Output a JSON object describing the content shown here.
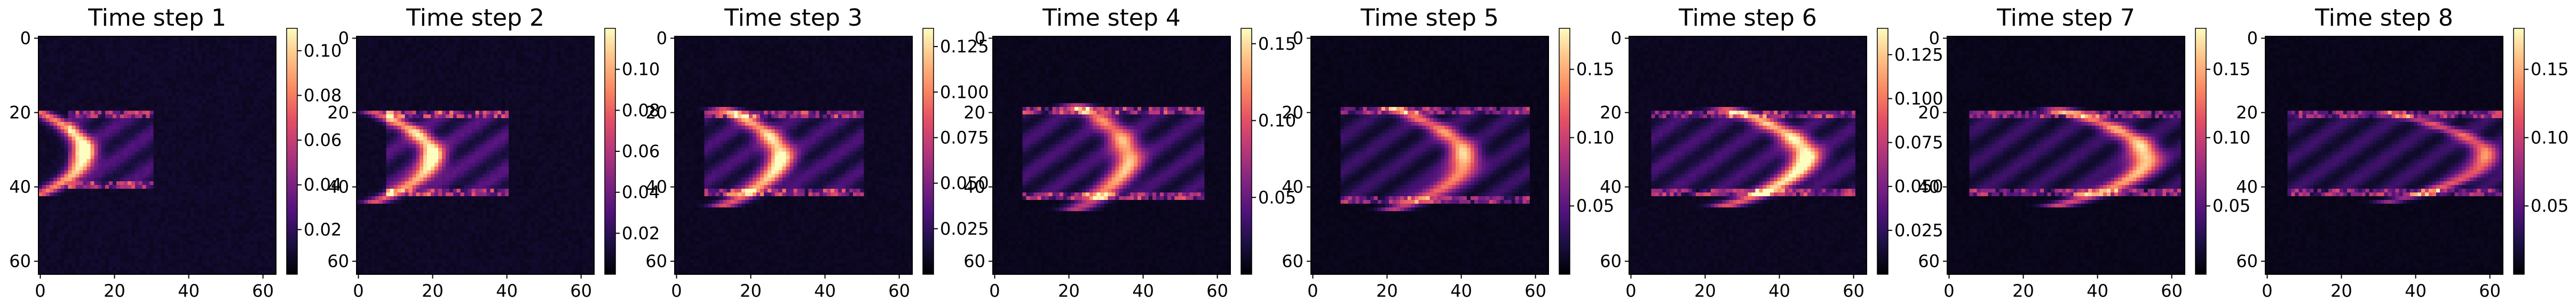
{
  "chart_data": [
    {
      "type": "heatmap",
      "title": "Time step 1",
      "grid_size": 64,
      "x_ticks": [
        "0",
        "20",
        "40",
        "60"
      ],
      "y_ticks": [
        "0",
        "20",
        "40",
        "60"
      ],
      "colorbar_ticks": [
        {
          "value": 0.02,
          "label": "0.02"
        },
        {
          "value": 0.04,
          "label": "0.04"
        },
        {
          "value": 0.06,
          "label": "0.06"
        },
        {
          "value": 0.08,
          "label": "0.08"
        },
        {
          "value": 0.1,
          "label": "0.10"
        }
      ],
      "value_range": [
        0.0,
        0.11
      ],
      "colormap": "magma",
      "front": {
        "x": 12,
        "opening": 10,
        "half_height": 10,
        "width": 2.2,
        "peak": 0.11
      },
      "cloud": {
        "x_start": 8,
        "x_end": 30,
        "y_top": 20,
        "y_bottom": 40,
        "level": 0.02
      }
    },
    {
      "type": "heatmap",
      "title": "Time step 2",
      "grid_size": 64,
      "x_ticks": [
        "0",
        "20",
        "40",
        "60"
      ],
      "y_ticks": [
        "0",
        "20",
        "40",
        "60"
      ],
      "colorbar_ticks": [
        {
          "value": 0.02,
          "label": "0.02"
        },
        {
          "value": 0.04,
          "label": "0.04"
        },
        {
          "value": 0.06,
          "label": "0.06"
        },
        {
          "value": 0.08,
          "label": "0.08"
        },
        {
          "value": 0.1,
          "label": "0.10"
        }
      ],
      "value_range": [
        0.0,
        0.12
      ],
      "colormap": "magma",
      "front": {
        "x": 20,
        "opening": 13,
        "half_height": 11,
        "width": 2.4,
        "peak": 0.11
      },
      "cloud": {
        "x_start": 8,
        "x_end": 40,
        "y_top": 20,
        "y_bottom": 42,
        "level": 0.025
      }
    },
    {
      "type": "heatmap",
      "title": "Time step 3",
      "grid_size": 64,
      "x_ticks": [
        "0",
        "20",
        "40",
        "60"
      ],
      "y_ticks": [
        "0",
        "20",
        "40",
        "60"
      ],
      "colorbar_ticks": [
        {
          "value": 0.025,
          "label": "0.025"
        },
        {
          "value": 0.05,
          "label": "0.050"
        },
        {
          "value": 0.075,
          "label": "0.075"
        },
        {
          "value": 0.1,
          "label": "0.100"
        },
        {
          "value": 0.125,
          "label": "0.125"
        }
      ],
      "value_range": [
        0.0,
        0.135
      ],
      "colormap": "magma",
      "front": {
        "x": 28,
        "opening": 13,
        "half_height": 12,
        "width": 2.6,
        "peak": 0.12
      },
      "cloud": {
        "x_start": 8,
        "x_end": 50,
        "y_top": 20,
        "y_bottom": 42,
        "level": 0.025
      }
    },
    {
      "type": "heatmap",
      "title": "Time step 4",
      "grid_size": 64,
      "x_ticks": [
        "0",
        "20",
        "40",
        "60"
      ],
      "y_ticks": [
        "0",
        "20",
        "40",
        "60"
      ],
      "colorbar_ticks": [
        {
          "value": 0.05,
          "label": "0.05"
        },
        {
          "value": 0.1,
          "label": "0.10"
        },
        {
          "value": 0.15,
          "label": "0.15"
        }
      ],
      "value_range": [
        0.0,
        0.16
      ],
      "colormap": "magma",
      "front": {
        "x": 36,
        "opening": 12,
        "half_height": 13,
        "width": 2.8,
        "peak": 0.12
      },
      "cloud": {
        "x_start": 8,
        "x_end": 56,
        "y_top": 19,
        "y_bottom": 43,
        "level": 0.03
      }
    },
    {
      "type": "heatmap",
      "title": "Time step 5",
      "grid_size": 64,
      "x_ticks": [
        "0",
        "20",
        "40",
        "60"
      ],
      "y_ticks": [
        "0",
        "20",
        "40",
        "60"
      ],
      "colorbar_ticks": [
        {
          "value": 0.05,
          "label": "0.05"
        },
        {
          "value": 0.1,
          "label": "0.10"
        },
        {
          "value": 0.15,
          "label": "0.15"
        }
      ],
      "value_range": [
        0.0,
        0.18
      ],
      "colormap": "magma",
      "front": {
        "x": 41,
        "opening": 15,
        "half_height": 12,
        "width": 2.8,
        "peak": 0.14
      },
      "cloud": {
        "x_start": 8,
        "x_end": 58,
        "y_top": 19,
        "y_bottom": 44,
        "level": 0.03
      }
    },
    {
      "type": "heatmap",
      "title": "Time step 6",
      "grid_size": 64,
      "x_ticks": [
        "0",
        "20",
        "40",
        "60"
      ],
      "y_ticks": [
        "0",
        "20",
        "40",
        "60"
      ],
      "colorbar_ticks": [
        {
          "value": 0.025,
          "label": "0.025"
        },
        {
          "value": 0.05,
          "label": "0.050"
        },
        {
          "value": 0.075,
          "label": "0.075"
        },
        {
          "value": 0.1,
          "label": "0.100"
        },
        {
          "value": 0.125,
          "label": "0.125"
        }
      ],
      "value_range": [
        0.0,
        0.14
      ],
      "colormap": "magma",
      "front": {
        "x": 47,
        "opening": 18,
        "half_height": 12,
        "width": 3.0,
        "peak": 0.13
      },
      "cloud": {
        "x_start": 6,
        "x_end": 60,
        "y_top": 20,
        "y_bottom": 42,
        "level": 0.025
      }
    },
    {
      "type": "heatmap",
      "title": "Time step 7",
      "grid_size": 64,
      "x_ticks": [
        "0",
        "20",
        "40",
        "60"
      ],
      "y_ticks": [
        "0",
        "20",
        "40",
        "60"
      ],
      "colorbar_ticks": [
        {
          "value": 0.05,
          "label": "0.05"
        },
        {
          "value": 0.1,
          "label": "0.10"
        },
        {
          "value": 0.15,
          "label": "0.15"
        }
      ],
      "value_range": [
        0.0,
        0.18
      ],
      "colormap": "magma",
      "front": {
        "x": 53,
        "opening": 20,
        "half_height": 12,
        "width": 3.0,
        "peak": 0.15
      },
      "cloud": {
        "x_start": 6,
        "x_end": 62,
        "y_top": 20,
        "y_bottom": 42,
        "level": 0.03
      }
    },
    {
      "type": "heatmap",
      "title": "Time step 8",
      "grid_size": 64,
      "x_ticks": [
        "0",
        "20",
        "40",
        "60"
      ],
      "y_ticks": [
        "0",
        "20",
        "40",
        "60"
      ],
      "colorbar_ticks": [
        {
          "value": 0.05,
          "label": "0.05"
        },
        {
          "value": 0.1,
          "label": "0.10"
        },
        {
          "value": 0.15,
          "label": "0.15"
        }
      ],
      "value_range": [
        0.0,
        0.18
      ],
      "colormap": "magma",
      "front": {
        "x": 59,
        "opening": 22,
        "half_height": 11,
        "width": 2.6,
        "peak": 0.11
      },
      "cloud": {
        "x_start": 6,
        "x_end": 63,
        "y_top": 20,
        "y_bottom": 42,
        "level": 0.03
      }
    }
  ]
}
